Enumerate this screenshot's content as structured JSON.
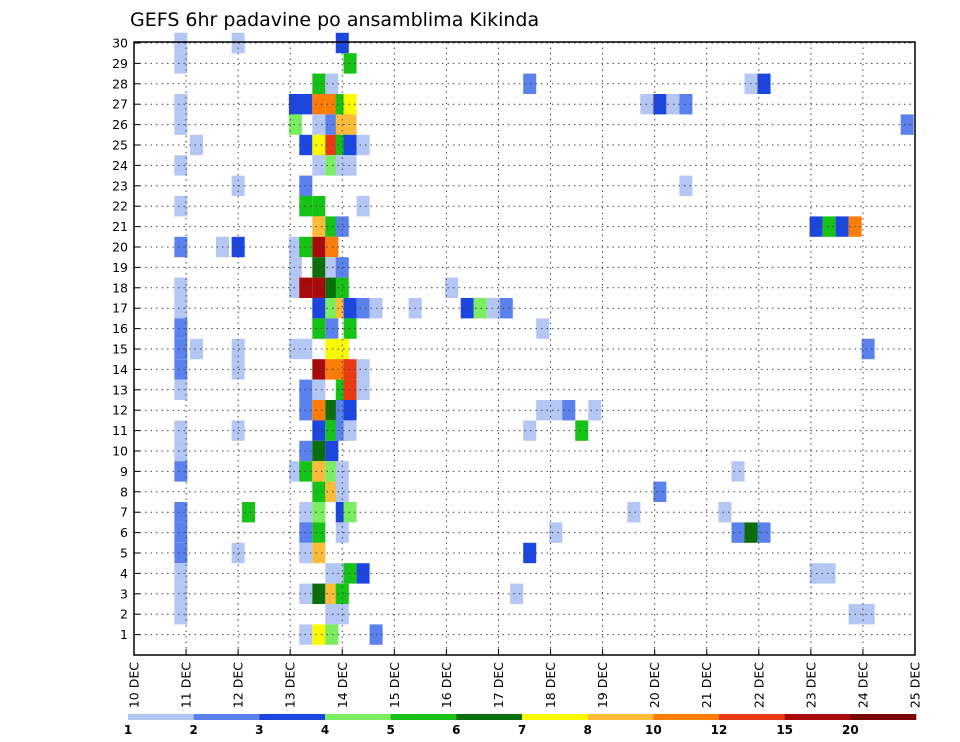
{
  "chart_data": {
    "type": "heatmap",
    "title": "GEFS 6hr padavine po ansamblima Kikinda",
    "xlabel": "",
    "ylabel": "",
    "x_ticks": [
      "10 DEC",
      "11 DEC",
      "12 DEC",
      "13 DEC",
      "14 DEC",
      "15 DEC",
      "16 DEC",
      "17 DEC",
      "18 DEC",
      "19 DEC",
      "20 DEC",
      "21 DEC",
      "22 DEC",
      "23 DEC",
      "24 DEC",
      "25 DEC"
    ],
    "y_ticks": [
      1,
      2,
      3,
      4,
      5,
      6,
      7,
      8,
      9,
      10,
      11,
      12,
      13,
      14,
      15,
      16,
      17,
      18,
      19,
      20,
      21,
      22,
      23,
      24,
      25,
      26,
      27,
      28,
      29,
      30
    ],
    "xlim": [
      "10 DEC",
      "25 DEC"
    ],
    "ylim": [
      0,
      30
    ],
    "grid": true,
    "colorbar": {
      "levels": [
        1,
        2,
        3,
        4,
        5,
        6,
        7,
        8,
        10,
        12,
        15,
        20
      ],
      "colors": [
        "#b4c6f4",
        "#5b82ec",
        "#1b46e0",
        "#7aee60",
        "#16c216",
        "#0a6e0a",
        "#fafa00",
        "#fcbc3a",
        "#fc7c0a",
        "#e83a14",
        "#a80a0a",
        "#7a0606"
      ]
    },
    "cells": [
      {
        "m": 30,
        "d": 10.9,
        "c": "#b4c6f4"
      },
      {
        "m": 30,
        "d": 12.0,
        "c": "#b4c6f4"
      },
      {
        "m": 30,
        "d": 14.0,
        "c": "#1b46e0"
      },
      {
        "m": 29,
        "d": 10.9,
        "c": "#b4c6f4"
      },
      {
        "m": 29,
        "d": 14.15,
        "c": "#16c216"
      },
      {
        "m": 28,
        "d": 13.55,
        "c": "#16c216"
      },
      {
        "m": 28,
        "d": 13.8,
        "c": "#b4c6f4"
      },
      {
        "m": 28,
        "d": 17.6,
        "c": "#5b82ec"
      },
      {
        "m": 28,
        "d": 21.85,
        "c": "#b4c6f4"
      },
      {
        "m": 28,
        "d": 22.1,
        "c": "#1b46e0"
      },
      {
        "m": 27,
        "d": 10.9,
        "c": "#b4c6f4"
      },
      {
        "m": 27,
        "d": 13.1,
        "c": "#1b46e0"
      },
      {
        "m": 27,
        "d": 13.3,
        "c": "#1b46e0"
      },
      {
        "m": 27,
        "d": 13.55,
        "c": "#fc7c0a"
      },
      {
        "m": 27,
        "d": 13.8,
        "c": "#fc7c0a"
      },
      {
        "m": 27,
        "d": 14.0,
        "c": "#16c216"
      },
      {
        "m": 27,
        "d": 14.15,
        "c": "#fafa00"
      },
      {
        "m": 27,
        "d": 19.85,
        "c": "#b4c6f4"
      },
      {
        "m": 27,
        "d": 20.1,
        "c": "#1b46e0"
      },
      {
        "m": 27,
        "d": 20.35,
        "c": "#b4c6f4"
      },
      {
        "m": 27,
        "d": 20.6,
        "c": "#5b82ec"
      },
      {
        "m": 26,
        "d": 10.9,
        "c": "#b4c6f4"
      },
      {
        "m": 26,
        "d": 13.1,
        "c": "#7aee60"
      },
      {
        "m": 26,
        "d": 13.55,
        "c": "#b4c6f4"
      },
      {
        "m": 26,
        "d": 13.8,
        "c": "#5b82ec"
      },
      {
        "m": 26,
        "d": 14.0,
        "c": "#fcbc3a"
      },
      {
        "m": 26,
        "d": 14.15,
        "c": "#fcbc3a"
      },
      {
        "m": 26,
        "d": 24.85,
        "c": "#5b82ec"
      },
      {
        "m": 25,
        "d": 11.2,
        "c": "#b4c6f4"
      },
      {
        "m": 25,
        "d": 13.3,
        "c": "#1b46e0"
      },
      {
        "m": 25,
        "d": 13.55,
        "c": "#fafa00"
      },
      {
        "m": 25,
        "d": 13.8,
        "c": "#e83a14"
      },
      {
        "m": 25,
        "d": 14.0,
        "c": "#16c216"
      },
      {
        "m": 25,
        "d": 14.15,
        "c": "#1b46e0"
      },
      {
        "m": 25,
        "d": 14.4,
        "c": "#b4c6f4"
      },
      {
        "m": 24,
        "d": 10.9,
        "c": "#b4c6f4"
      },
      {
        "m": 24,
        "d": 13.55,
        "c": "#b4c6f4"
      },
      {
        "m": 24,
        "d": 13.8,
        "c": "#7aee60"
      },
      {
        "m": 24,
        "d": 14.0,
        "c": "#b4c6f4"
      },
      {
        "m": 24,
        "d": 14.15,
        "c": "#b4c6f4"
      },
      {
        "m": 23,
        "d": 12.0,
        "c": "#b4c6f4"
      },
      {
        "m": 23,
        "d": 13.3,
        "c": "#5b82ec"
      },
      {
        "m": 23,
        "d": 20.6,
        "c": "#b4c6f4"
      },
      {
        "m": 22,
        "d": 10.9,
        "c": "#b4c6f4"
      },
      {
        "m": 22,
        "d": 13.3,
        "c": "#16c216"
      },
      {
        "m": 22,
        "d": 13.55,
        "c": "#16c216"
      },
      {
        "m": 22,
        "d": 14.4,
        "c": "#b4c6f4"
      },
      {
        "m": 21,
        "d": 13.55,
        "c": "#fcbc3a"
      },
      {
        "m": 21,
        "d": 13.8,
        "c": "#16c216"
      },
      {
        "m": 21,
        "d": 14.0,
        "c": "#5b82ec"
      },
      {
        "m": 21,
        "d": 23.1,
        "c": "#1b46e0"
      },
      {
        "m": 21,
        "d": 23.35,
        "c": "#16c216"
      },
      {
        "m": 21,
        "d": 23.6,
        "c": "#1b46e0"
      },
      {
        "m": 21,
        "d": 23.85,
        "c": "#fc7c0a"
      },
      {
        "m": 20,
        "d": 10.9,
        "c": "#5b82ec"
      },
      {
        "m": 20,
        "d": 11.7,
        "c": "#b4c6f4"
      },
      {
        "m": 20,
        "d": 12.0,
        "c": "#1b46e0"
      },
      {
        "m": 20,
        "d": 13.1,
        "c": "#b4c6f4"
      },
      {
        "m": 20,
        "d": 13.3,
        "c": "#16c216"
      },
      {
        "m": 20,
        "d": 13.55,
        "c": "#a80a0a"
      },
      {
        "m": 20,
        "d": 13.8,
        "c": "#fc7c0a"
      },
      {
        "m": 19,
        "d": 13.1,
        "c": "#b4c6f4"
      },
      {
        "m": 19,
        "d": 13.55,
        "c": "#0a6e0a"
      },
      {
        "m": 19,
        "d": 13.8,
        "c": "#b4c6f4"
      },
      {
        "m": 19,
        "d": 14.0,
        "c": "#5b82ec"
      },
      {
        "m": 18,
        "d": 10.9,
        "c": "#b4c6f4"
      },
      {
        "m": 18,
        "d": 13.1,
        "c": "#b4c6f4"
      },
      {
        "m": 18,
        "d": 13.3,
        "c": "#a80a0a"
      },
      {
        "m": 18,
        "d": 13.55,
        "c": "#a80a0a"
      },
      {
        "m": 18,
        "d": 13.8,
        "c": "#0a6e0a"
      },
      {
        "m": 18,
        "d": 14.0,
        "c": "#16c216"
      },
      {
        "m": 18,
        "d": 16.1,
        "c": "#b4c6f4"
      },
      {
        "m": 17,
        "d": 10.9,
        "c": "#b4c6f4"
      },
      {
        "m": 17,
        "d": 13.55,
        "c": "#1b46e0"
      },
      {
        "m": 17,
        "d": 13.8,
        "c": "#7aee60"
      },
      {
        "m": 17,
        "d": 14.0,
        "c": "#fcbc3a"
      },
      {
        "m": 17,
        "d": 14.15,
        "c": "#1b46e0"
      },
      {
        "m": 17,
        "d": 14.4,
        "c": "#5b82ec"
      },
      {
        "m": 17,
        "d": 14.65,
        "c": "#b4c6f4"
      },
      {
        "m": 17,
        "d": 15.4,
        "c": "#b4c6f4"
      },
      {
        "m": 17,
        "d": 16.4,
        "c": "#1b46e0"
      },
      {
        "m": 17,
        "d": 16.65,
        "c": "#7aee60"
      },
      {
        "m": 17,
        "d": 16.9,
        "c": "#b4c6f4"
      },
      {
        "m": 17,
        "d": 17.15,
        "c": "#5b82ec"
      },
      {
        "m": 16,
        "d": 10.9,
        "c": "#5b82ec"
      },
      {
        "m": 16,
        "d": 13.55,
        "c": "#16c216"
      },
      {
        "m": 16,
        "d": 13.8,
        "c": "#5b82ec"
      },
      {
        "m": 16,
        "d": 14.15,
        "c": "#16c216"
      },
      {
        "m": 16,
        "d": 17.85,
        "c": "#b4c6f4"
      },
      {
        "m": 15,
        "d": 10.9,
        "c": "#5b82ec"
      },
      {
        "m": 15,
        "d": 11.2,
        "c": "#b4c6f4"
      },
      {
        "m": 15,
        "d": 12.0,
        "c": "#b4c6f4"
      },
      {
        "m": 15,
        "d": 13.1,
        "c": "#b4c6f4"
      },
      {
        "m": 15,
        "d": 13.3,
        "c": "#b4c6f4"
      },
      {
        "m": 15,
        "d": 13.8,
        "c": "#fafa00"
      },
      {
        "m": 15,
        "d": 14.0,
        "c": "#fafa00"
      },
      {
        "m": 15,
        "d": 24.1,
        "c": "#5b82ec"
      },
      {
        "m": 14,
        "d": 10.9,
        "c": "#5b82ec"
      },
      {
        "m": 14,
        "d": 12.0,
        "c": "#b4c6f4"
      },
      {
        "m": 14,
        "d": 13.55,
        "c": "#a80a0a"
      },
      {
        "m": 14,
        "d": 13.8,
        "c": "#fc7c0a"
      },
      {
        "m": 14,
        "d": 14.0,
        "c": "#fc7c0a"
      },
      {
        "m": 14,
        "d": 14.15,
        "c": "#e83a14"
      },
      {
        "m": 14,
        "d": 14.4,
        "c": "#b4c6f4"
      },
      {
        "m": 13,
        "d": 10.9,
        "c": "#b4c6f4"
      },
      {
        "m": 13,
        "d": 13.3,
        "c": "#5b82ec"
      },
      {
        "m": 13,
        "d": 13.55,
        "c": "#b4c6f4"
      },
      {
        "m": 13,
        "d": 14.0,
        "c": "#16c216"
      },
      {
        "m": 13,
        "d": 14.15,
        "c": "#e83a14"
      },
      {
        "m": 13,
        "d": 14.4,
        "c": "#b4c6f4"
      },
      {
        "m": 12,
        "d": 13.3,
        "c": "#5b82ec"
      },
      {
        "m": 12,
        "d": 13.55,
        "c": "#fc7c0a"
      },
      {
        "m": 12,
        "d": 13.8,
        "c": "#0a6e0a"
      },
      {
        "m": 12,
        "d": 14.0,
        "c": "#5b82ec"
      },
      {
        "m": 12,
        "d": 14.15,
        "c": "#1b46e0"
      },
      {
        "m": 12,
        "d": 17.85,
        "c": "#b4c6f4"
      },
      {
        "m": 12,
        "d": 18.1,
        "c": "#b4c6f4"
      },
      {
        "m": 12,
        "d": 18.35,
        "c": "#5b82ec"
      },
      {
        "m": 12,
        "d": 18.85,
        "c": "#b4c6f4"
      },
      {
        "m": 11,
        "d": 10.9,
        "c": "#b4c6f4"
      },
      {
        "m": 11,
        "d": 12.0,
        "c": "#b4c6f4"
      },
      {
        "m": 11,
        "d": 13.55,
        "c": "#1b46e0"
      },
      {
        "m": 11,
        "d": 13.8,
        "c": "#16c216"
      },
      {
        "m": 11,
        "d": 14.0,
        "c": "#5b82ec"
      },
      {
        "m": 11,
        "d": 14.15,
        "c": "#b4c6f4"
      },
      {
        "m": 11,
        "d": 17.6,
        "c": "#b4c6f4"
      },
      {
        "m": 11,
        "d": 18.6,
        "c": "#16c216"
      },
      {
        "m": 10,
        "d": 10.9,
        "c": "#b4c6f4"
      },
      {
        "m": 10,
        "d": 13.3,
        "c": "#5b82ec"
      },
      {
        "m": 10,
        "d": 13.55,
        "c": "#0a6e0a"
      },
      {
        "m": 10,
        "d": 13.8,
        "c": "#1b46e0"
      },
      {
        "m": 9,
        "d": 10.9,
        "c": "#5b82ec"
      },
      {
        "m": 9,
        "d": 13.1,
        "c": "#b4c6f4"
      },
      {
        "m": 9,
        "d": 13.3,
        "c": "#16c216"
      },
      {
        "m": 9,
        "d": 13.55,
        "c": "#fcbc3a"
      },
      {
        "m": 9,
        "d": 13.8,
        "c": "#7aee60"
      },
      {
        "m": 9,
        "d": 14.0,
        "c": "#b4c6f4"
      },
      {
        "m": 9,
        "d": 21.6,
        "c": "#b4c6f4"
      },
      {
        "m": 8,
        "d": 13.55,
        "c": "#16c216"
      },
      {
        "m": 8,
        "d": 13.8,
        "c": "#fcbc3a"
      },
      {
        "m": 8,
        "d": 14.0,
        "c": "#b4c6f4"
      },
      {
        "m": 8,
        "d": 20.1,
        "c": "#5b82ec"
      },
      {
        "m": 7,
        "d": 10.9,
        "c": "#5b82ec"
      },
      {
        "m": 7,
        "d": 12.2,
        "c": "#16c216"
      },
      {
        "m": 7,
        "d": 13.3,
        "c": "#b4c6f4"
      },
      {
        "m": 7,
        "d": 13.55,
        "c": "#7aee60"
      },
      {
        "m": 7,
        "d": 14.0,
        "c": "#1b46e0"
      },
      {
        "m": 7,
        "d": 14.15,
        "c": "#7aee60"
      },
      {
        "m": 7,
        "d": 19.6,
        "c": "#b4c6f4"
      },
      {
        "m": 7,
        "d": 21.35,
        "c": "#b4c6f4"
      },
      {
        "m": 6,
        "d": 10.9,
        "c": "#5b82ec"
      },
      {
        "m": 6,
        "d": 13.3,
        "c": "#5b82ec"
      },
      {
        "m": 6,
        "d": 13.55,
        "c": "#16c216"
      },
      {
        "m": 6,
        "d": 14.0,
        "c": "#b4c6f4"
      },
      {
        "m": 6,
        "d": 18.1,
        "c": "#b4c6f4"
      },
      {
        "m": 6,
        "d": 21.6,
        "c": "#5b82ec"
      },
      {
        "m": 6,
        "d": 21.85,
        "c": "#0a6e0a"
      },
      {
        "m": 6,
        "d": 22.1,
        "c": "#5b82ec"
      },
      {
        "m": 5,
        "d": 10.9,
        "c": "#5b82ec"
      },
      {
        "m": 5,
        "d": 12.0,
        "c": "#b4c6f4"
      },
      {
        "m": 5,
        "d": 13.3,
        "c": "#b4c6f4"
      },
      {
        "m": 5,
        "d": 13.55,
        "c": "#fcbc3a"
      },
      {
        "m": 5,
        "d": 17.6,
        "c": "#1b46e0"
      },
      {
        "m": 4,
        "d": 10.9,
        "c": "#b4c6f4"
      },
      {
        "m": 4,
        "d": 13.8,
        "c": "#b4c6f4"
      },
      {
        "m": 4,
        "d": 14.0,
        "c": "#b4c6f4"
      },
      {
        "m": 4,
        "d": 14.15,
        "c": "#16c216"
      },
      {
        "m": 4,
        "d": 14.4,
        "c": "#1b46e0"
      },
      {
        "m": 4,
        "d": 23.1,
        "c": "#b4c6f4"
      },
      {
        "m": 4,
        "d": 23.35,
        "c": "#b4c6f4"
      },
      {
        "m": 3,
        "d": 10.9,
        "c": "#b4c6f4"
      },
      {
        "m": 3,
        "d": 13.3,
        "c": "#b4c6f4"
      },
      {
        "m": 3,
        "d": 13.55,
        "c": "#0a6e0a"
      },
      {
        "m": 3,
        "d": 13.8,
        "c": "#fcbc3a"
      },
      {
        "m": 3,
        "d": 14.0,
        "c": "#16c216"
      },
      {
        "m": 3,
        "d": 17.35,
        "c": "#b4c6f4"
      },
      {
        "m": 2,
        "d": 10.9,
        "c": "#b4c6f4"
      },
      {
        "m": 2,
        "d": 13.8,
        "c": "#b4c6f4"
      },
      {
        "m": 2,
        "d": 14.0,
        "c": "#b4c6f4"
      },
      {
        "m": 2,
        "d": 23.85,
        "c": "#b4c6f4"
      },
      {
        "m": 2,
        "d": 24.1,
        "c": "#b4c6f4"
      },
      {
        "m": 1,
        "d": 13.3,
        "c": "#b4c6f4"
      },
      {
        "m": 1,
        "d": 13.55,
        "c": "#fafa00"
      },
      {
        "m": 1,
        "d": 13.8,
        "c": "#7aee60"
      },
      {
        "m": 1,
        "d": 14.65,
        "c": "#5b82ec"
      }
    ]
  }
}
